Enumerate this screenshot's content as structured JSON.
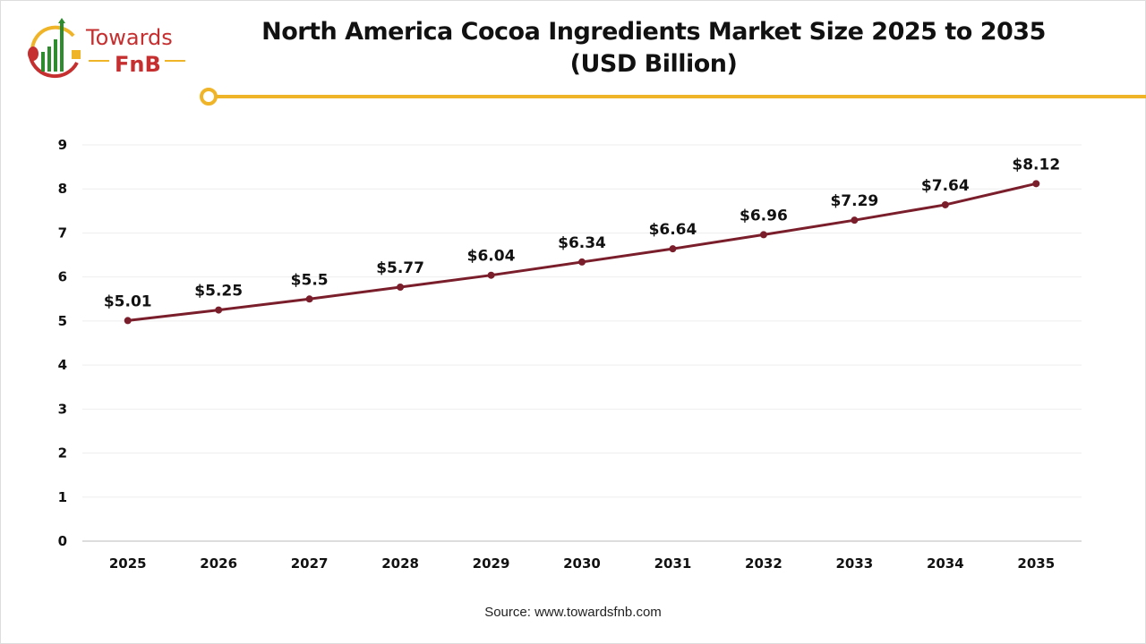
{
  "logo": {
    "text_top": "Towards",
    "text_bottom": "FnB"
  },
  "colors": {
    "line": "#7b1e2b",
    "accent": "#f0b429",
    "brand_red": "#c62f2f",
    "brand_green": "#2e8b2e"
  },
  "source": "Source: www.towardsfnb.com",
  "chart_data": {
    "type": "line",
    "title": "North America Cocoa Ingredients Market Size 2025 to 2035",
    "subtitle": "(USD Billion)",
    "xlabel": "",
    "ylabel": "",
    "categories": [
      "2025",
      "2026",
      "2027",
      "2028",
      "2029",
      "2030",
      "2031",
      "2032",
      "2033",
      "2034",
      "2035"
    ],
    "values": [
      5.01,
      5.25,
      5.5,
      5.77,
      6.04,
      6.34,
      6.64,
      6.96,
      7.29,
      7.64,
      8.12
    ],
    "data_labels": [
      "$5.01",
      "$5.25",
      "$5.5",
      "$5.77",
      "$6.04",
      "$6.34",
      "$6.64",
      "$6.96",
      "$7.29",
      "$7.64",
      "$8.12"
    ],
    "ylim": [
      0,
      9
    ],
    "yticks": [
      "0",
      "1",
      "2",
      "3",
      "4",
      "5",
      "6",
      "7",
      "8",
      "9"
    ],
    "grid": true,
    "legend": "none"
  }
}
